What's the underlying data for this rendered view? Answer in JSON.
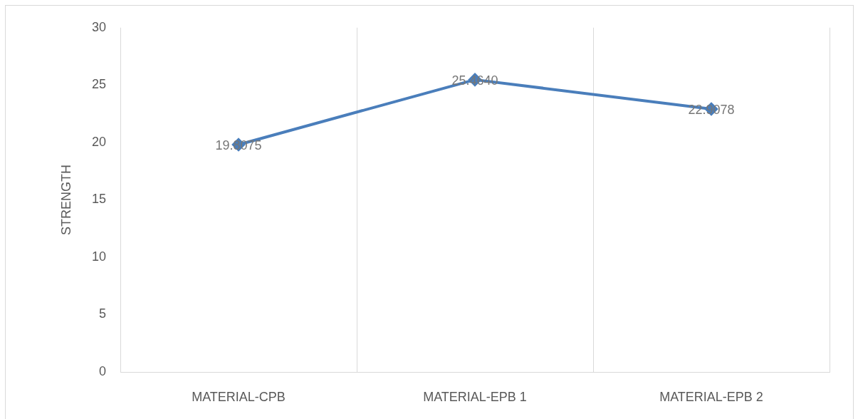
{
  "chart_data": {
    "type": "line",
    "ylabel": "STRENGTH",
    "categories": [
      "MATERIAL-CPB",
      "MATERIAL-EPB 1",
      "MATERIAL-EPB 2"
    ],
    "series": [
      {
        "color": "#4a7ebb",
        "values": [
          19.8075,
          25.464,
          22.9078
        ],
        "value_labels": [
          "19.8075",
          "25.4640",
          "22.9078"
        ]
      }
    ],
    "ylim": [
      0,
      30
    ],
    "yticks": [
      0,
      5,
      10,
      15,
      20,
      25,
      30
    ],
    "grid": "x",
    "marker": "diamond",
    "line_style": "solid"
  }
}
